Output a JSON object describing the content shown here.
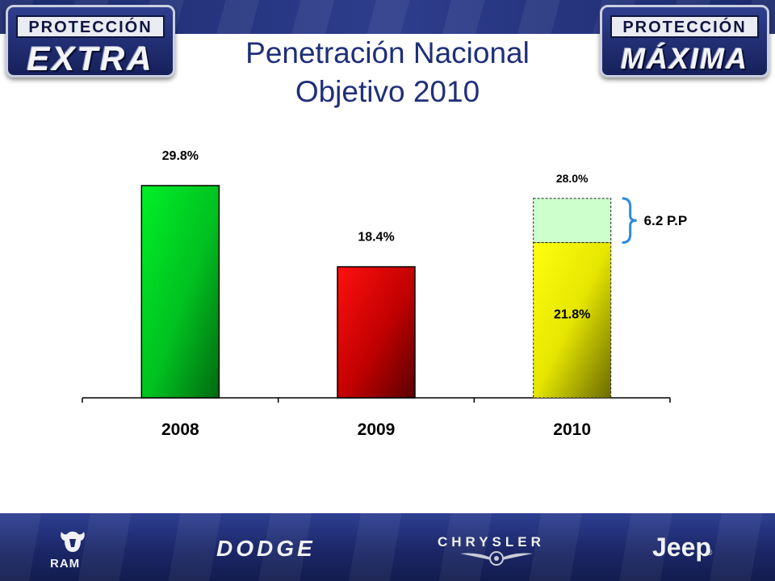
{
  "header": {
    "title_line1": "Penetración Nacional",
    "title_line2": "Objetivo  2010",
    "badge_left": {
      "top": "PROTECCIÓN",
      "main": "EXTRA"
    },
    "badge_right": {
      "top": "PROTECCIÓN",
      "main": "MÁXIMA"
    }
  },
  "footer": {
    "brands": [
      "RAM",
      "DODGE",
      "CHRYSLER",
      "Jeep"
    ],
    "ram_icon": "ram-head-icon",
    "chrysler_icon": "chrysler-wings-icon",
    "jeep_reg": "®"
  },
  "colors": {
    "bar_2008": "#00ee22",
    "bar_2009": "#ee0000",
    "bar_2010": "#ffff00",
    "target_fill": "#ccffcc",
    "bracket": "#2e8bd8",
    "title": "#1f2f7a"
  },
  "chart_data": {
    "type": "bar",
    "categories": [
      "2008",
      "2009",
      "2010"
    ],
    "values": [
      29.8,
      18.4,
      21.8
    ],
    "value_labels": [
      "29.8%",
      "18.4%",
      "21.8%"
    ],
    "target": {
      "category": "2010",
      "value": 28.0,
      "label": "28.0%"
    },
    "annotation": "6.2 P.P",
    "ylim": [
      0,
      40
    ],
    "grid": false,
    "legend": "none"
  }
}
